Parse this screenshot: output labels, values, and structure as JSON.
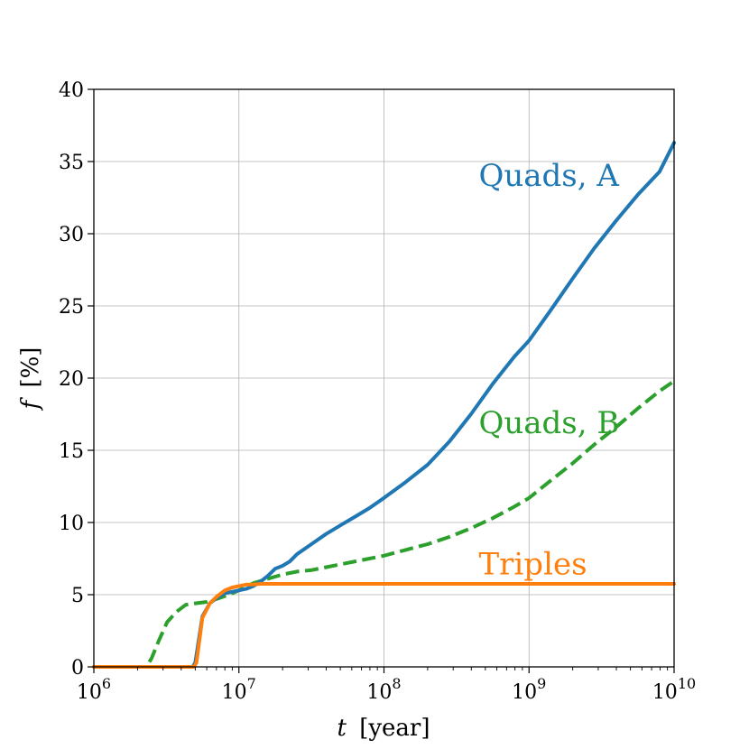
{
  "chart_data": {
    "type": "line",
    "xscale": "log",
    "xlim": [
      1000000,
      10000000000
    ],
    "ylim": [
      0,
      40
    ],
    "xlabel": {
      "var": "t",
      "unit": "[year]"
    },
    "ylabel": {
      "var": "f",
      "unit": "[%]"
    },
    "grid": true,
    "x_ticks": [
      {
        "value": 1000000,
        "base": "10",
        "exp": "6"
      },
      {
        "value": 10000000,
        "base": "10",
        "exp": "7"
      },
      {
        "value": 100000000,
        "base": "10",
        "exp": "8"
      },
      {
        "value": 1000000000,
        "base": "10",
        "exp": "9"
      },
      {
        "value": 10000000000,
        "base": "10",
        "exp": "10"
      }
    ],
    "y_ticks": [
      {
        "value": 0,
        "label": "0"
      },
      {
        "value": 5,
        "label": "5"
      },
      {
        "value": 10,
        "label": "10"
      },
      {
        "value": 15,
        "label": "15"
      },
      {
        "value": 20,
        "label": "20"
      },
      {
        "value": 25,
        "label": "25"
      },
      {
        "value": 30,
        "label": "30"
      },
      {
        "value": 35,
        "label": "35"
      },
      {
        "value": 40,
        "label": "40"
      }
    ],
    "series": [
      {
        "name": "Quads, A",
        "color": "#1f77b4",
        "dash": "solid",
        "label_anchor": {
          "x": 450000000,
          "y": 33.3
        },
        "x": [
          1000000,
          4800000,
          5000000,
          5600000,
          6300000,
          7100000,
          8000000,
          9000000,
          10000000,
          11200000,
          12600000,
          14100000,
          15800000,
          17800000,
          20000000,
          22400000,
          25100000,
          31600000,
          39800000,
          50100000,
          63100000,
          79400000,
          100000000,
          141000000,
          200000000,
          282000000,
          398000000,
          562000000,
          794000000,
          1000000000,
          1410000000,
          2000000000,
          2820000000,
          3980000000,
          5620000000,
          7940000000,
          10000000000
        ],
        "y": [
          0,
          0,
          0.3,
          3.5,
          4.4,
          4.8,
          5.1,
          5.2,
          5.3,
          5.4,
          5.6,
          5.9,
          6.3,
          6.8,
          7.0,
          7.3,
          7.8,
          8.5,
          9.2,
          9.8,
          10.4,
          11.0,
          11.7,
          12.8,
          14.0,
          15.6,
          17.5,
          19.6,
          21.5,
          22.6,
          24.7,
          26.9,
          29.0,
          30.9,
          32.7,
          34.3,
          36.3
        ]
      },
      {
        "name": "Quads, B",
        "color": "#2ca02c",
        "dash": "dashed",
        "label_anchor": {
          "x": 450000000,
          "y": 16.2
        },
        "x": [
          1000000,
          2300000,
          2500000,
          2800000,
          3200000,
          3700000,
          4300000,
          5000000,
          6000000,
          7000000,
          8000000,
          9000000,
          10000000,
          12600000,
          15800000,
          20000000,
          25100000,
          31600000,
          50100000,
          79400000,
          100000000,
          141000000,
          200000000,
          282000000,
          398000000,
          562000000,
          794000000,
          1000000000,
          1410000000,
          2000000000,
          2820000000,
          3980000000,
          5620000000,
          7940000000,
          10000000000
        ],
        "y": [
          0,
          0,
          0.6,
          1.8,
          3.1,
          3.8,
          4.3,
          4.4,
          4.5,
          4.7,
          4.9,
          5.1,
          5.3,
          5.8,
          6.1,
          6.4,
          6.6,
          6.7,
          7.1,
          7.5,
          7.7,
          8.1,
          8.5,
          9.0,
          9.6,
          10.3,
          11.1,
          11.7,
          12.9,
          14.1,
          15.4,
          16.6,
          17.9,
          19.1,
          19.8
        ]
      },
      {
        "name": "Triples",
        "color": "#ff7f0e",
        "dash": "solid",
        "label_anchor": {
          "x": 450000000,
          "y": 6.4
        },
        "x": [
          1000000,
          4900000,
          5100000,
          5600000,
          6300000,
          7100000,
          8000000,
          9000000,
          10000000,
          11200000,
          12600000,
          14100000,
          10000000000
        ],
        "y": [
          0,
          0,
          0.3,
          3.4,
          4.4,
          4.9,
          5.3,
          5.5,
          5.6,
          5.7,
          5.7,
          5.75,
          5.75
        ]
      }
    ]
  }
}
